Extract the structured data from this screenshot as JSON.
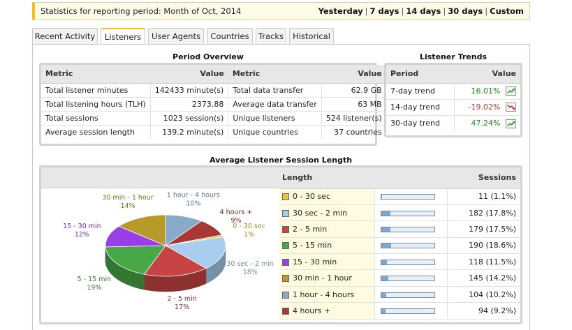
{
  "header": {
    "period_label": "Statistics for reporting period: Month of Oct, 2014",
    "ranges": [
      "Yesterday",
      "7 days",
      "14 days",
      "30 days",
      "Custom"
    ]
  },
  "tabs": [
    {
      "label": "Recent Activity",
      "active": false
    },
    {
      "label": "Listeners",
      "active": true
    },
    {
      "label": "User Agents",
      "active": false
    },
    {
      "label": "Countries",
      "active": false
    },
    {
      "label": "Tracks",
      "active": false
    },
    {
      "label": "Historical",
      "active": false
    }
  ],
  "overview": {
    "title": "Period Overview",
    "columns": [
      "Metric",
      "Value",
      "Metric",
      "Value"
    ],
    "rows": [
      [
        "Total listener minutes",
        "142433 minute(s)",
        "Total data transfer",
        "62.9 GB"
      ],
      [
        "Total listening hours (TLH)",
        "2373.88",
        "Average data transfer",
        "63 MB"
      ],
      [
        "Total sessions",
        "1023 session(s)",
        "Unique listeners",
        "524 listener(s)"
      ],
      [
        "Average session length",
        "139.2 minute(s)",
        "Unique countries",
        "37 countries"
      ]
    ]
  },
  "trends": {
    "title": "Listener Trends",
    "columns": [
      "Period",
      "Value"
    ],
    "rows": [
      {
        "period": "7-day trend",
        "value": "16.01%",
        "direction": "up",
        "icon": "trend-up-icon"
      },
      {
        "period": "14-day trend",
        "value": "-19.02%",
        "direction": "down",
        "icon": "trend-down-icon"
      },
      {
        "period": "30-day trend",
        "value": "47.24%",
        "direction": "up",
        "icon": "trend-up-icon"
      }
    ]
  },
  "session": {
    "title": "Average Listener Session Length",
    "columns": [
      "Length",
      "Sessions"
    ]
  },
  "chart_data": {
    "type": "pie",
    "title": "",
    "categories": [
      "0 - 30 sec",
      "30 sec - 2 min",
      "2 - 5 min",
      "5 - 15 min",
      "15 - 30 min",
      "30 min - 1 hour",
      "1 hour - 4 hours",
      "4 hours +"
    ],
    "values": [
      11,
      182,
      179,
      190,
      118,
      145,
      104,
      94
    ],
    "value_labels": [
      "11 (1.1%)",
      "182 (17.8%)",
      "179 (17.5%)",
      "190 (18.6%)",
      "118 (11.5%)",
      "145 (14.2%)",
      "104 (10.2%)",
      "94 (9.2%)"
    ],
    "slice_labels": [
      "1%",
      "18%",
      "17%",
      "19%",
      "12%",
      "14%",
      "10%",
      "9%"
    ],
    "pie_labels": [
      "0 - 30 sec",
      "30 sec - 2 min",
      "2 - 5 min",
      "5 - 15 min",
      "15 - 30 min",
      "30 min - 1 hour",
      "1 hour - 4 hours",
      "4 hours +"
    ],
    "colors": [
      "#e6c44a",
      "#a9cdef",
      "#c84444",
      "#48a848",
      "#9b3ee8",
      "#b89a2a",
      "#88aac8",
      "#a83838"
    ],
    "bar_fractions": [
      0.011,
      0.178,
      0.175,
      0.186,
      0.115,
      0.142,
      0.102,
      0.092
    ],
    "legend": "right"
  }
}
